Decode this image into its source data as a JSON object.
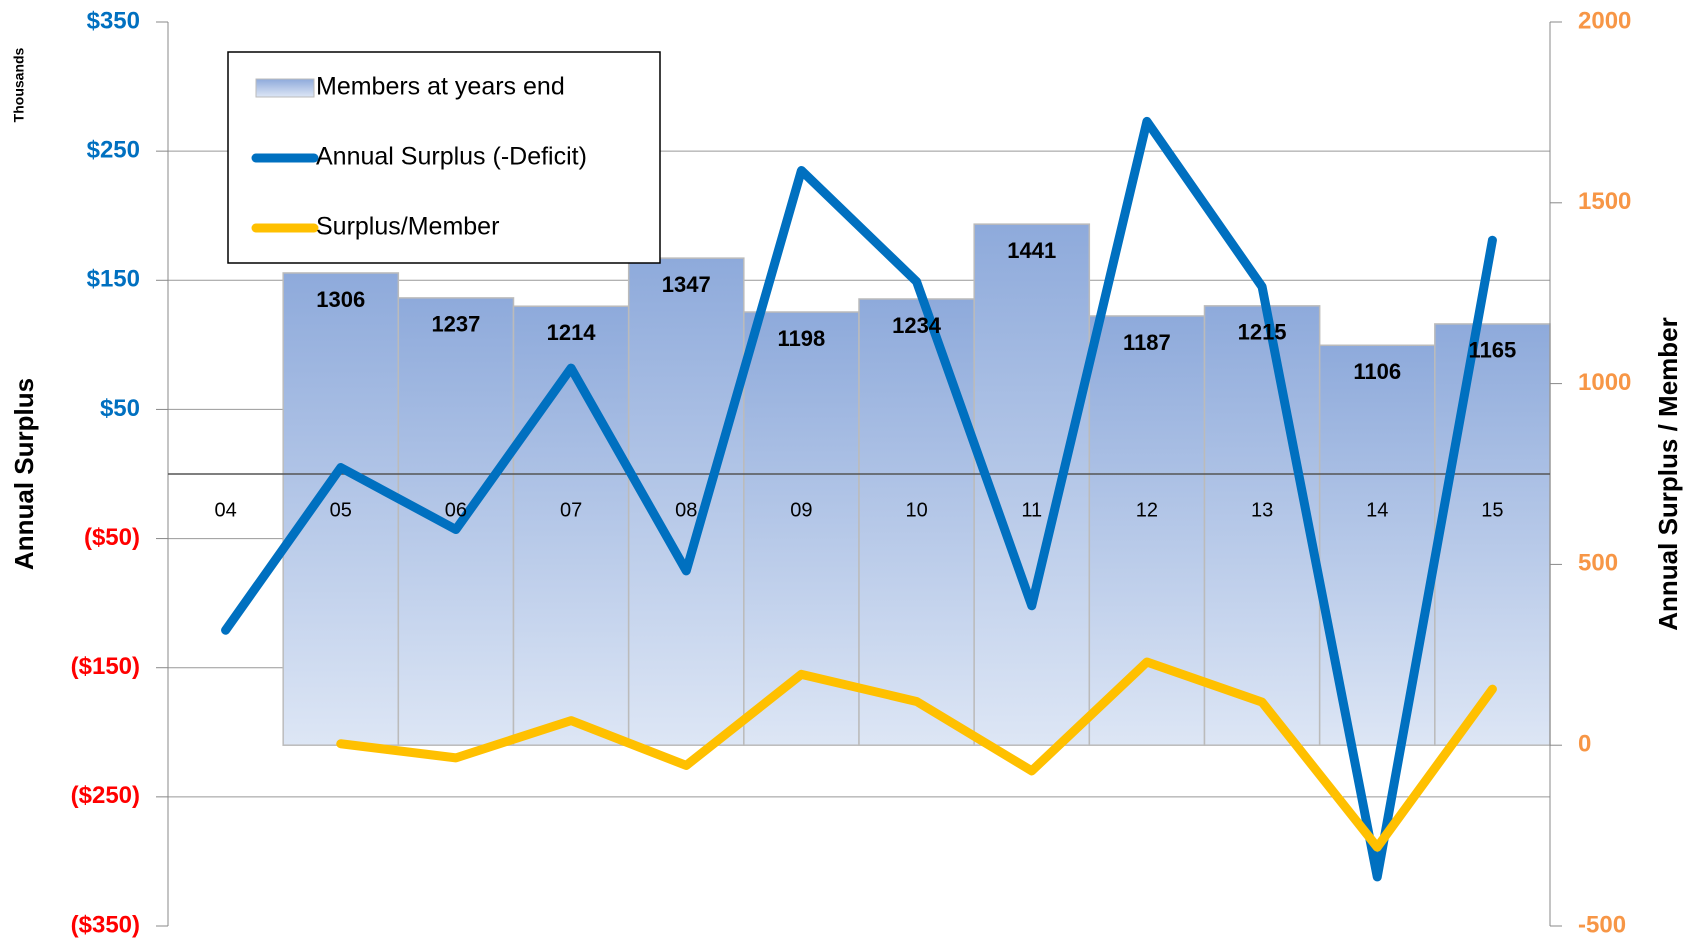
{
  "chart_data": {
    "type": "bar",
    "y_label": "Annual Surplus",
    "y_unit_label": "Thousands",
    "y2_label": "Annual Surplus / Member",
    "categories": [
      "04",
      "05",
      "06",
      "07",
      "08",
      "09",
      "10",
      "11",
      "12",
      "13",
      "14",
      "15"
    ],
    "series": [
      {
        "name": "Members at years end",
        "type": "bar",
        "axis": "y2",
        "color": "#8eaadb",
        "values": [
          null,
          1306,
          1237,
          1214,
          1347,
          1198,
          1234,
          1441,
          1187,
          1215,
          1106,
          1165
        ]
      },
      {
        "name": "Annual Surplus (-Deficit)",
        "type": "line",
        "axis": "y",
        "color": "#0070c0",
        "values": [
          -121,
          5,
          -43,
          82,
          -75,
          235,
          149,
          -102,
          273,
          145,
          -312,
          181
        ]
      },
      {
        "name": "Surplus/Member",
        "type": "line",
        "axis": "y2",
        "color": "#ffc000",
        "values": [
          null,
          4,
          -35,
          68,
          -56,
          196,
          121,
          -71,
          230,
          119,
          -282,
          155
        ]
      }
    ],
    "ylim": [
      -350,
      350
    ],
    "yticks": [
      {
        "value": -350,
        "label": "($350)"
      },
      {
        "value": -250,
        "label": "($250)"
      },
      {
        "value": -150,
        "label": "($150)"
      },
      {
        "value": -50,
        "label": "($50)"
      },
      {
        "value": 50,
        "label": "$50"
      },
      {
        "value": 150,
        "label": "$150"
      },
      {
        "value": 250,
        "label": "$250"
      },
      {
        "value": 350,
        "label": "$350"
      }
    ],
    "y2lim": [
      -500,
      2000
    ],
    "y2ticks": [
      -500,
      0,
      500,
      1000,
      1500,
      2000
    ],
    "grid": true,
    "legend": "upper left"
  }
}
